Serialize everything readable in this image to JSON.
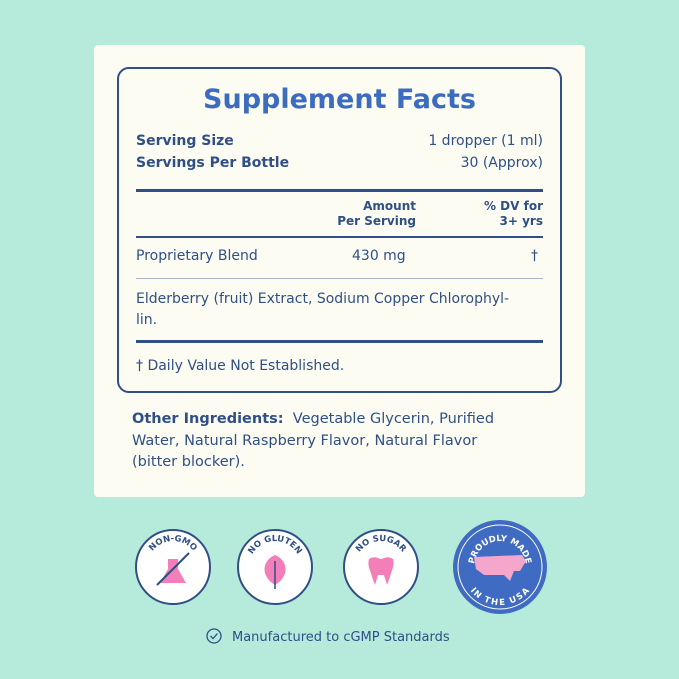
{
  "label": {
    "title": "Supplement Facts",
    "serving_size": {
      "label": "Serving Size",
      "value": "1 dropper (1 ml)"
    },
    "servings_per_bottle": {
      "label": "Servings Per Bottle",
      "value": "30 (Approx)"
    },
    "columns": {
      "amount": [
        "Amount",
        "Per Serving"
      ],
      "dv": [
        "% DV for",
        "3+ yrs"
      ]
    },
    "rows": [
      {
        "name": "Proprietary Blend",
        "amount": "430 mg",
        "dv": "†"
      }
    ],
    "blend_ingredients": [
      "Elderberry (fruit) Extract, Sodium Copper Chlorophyl-",
      "lin."
    ],
    "footnote": "† Daily Value Not Established.",
    "other_ingredients": {
      "label": "Other Ingredients:",
      "text": "Vegetable Glycerin, Purified Water, Natural Raspberry Flavor, Natural Flavor (bitter blocker)."
    }
  },
  "badges": [
    "NON-GMO",
    "NO GLUTEN",
    "NO SUGAR",
    {
      "top": "PROUDLY MADE",
      "bottom": "IN THE USA"
    }
  ],
  "footer": "Manufactured to cGMP Standards"
}
